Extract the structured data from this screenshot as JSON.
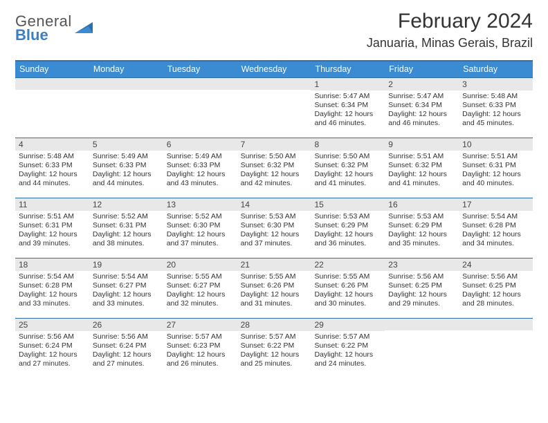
{
  "logo": {
    "word1": "General",
    "word2": "Blue"
  },
  "colors": {
    "brand_blue": "#3a8bd1",
    "dark_blue_rule": "#2f6fa8",
    "logo_blue": "#3a7fc4",
    "daynum_bg": "#e8e8e8",
    "text": "#333333"
  },
  "title": "February 2024",
  "location": "Januaria, Minas Gerais, Brazil",
  "daysOfWeek": [
    "Sunday",
    "Monday",
    "Tuesday",
    "Wednesday",
    "Thursday",
    "Friday",
    "Saturday"
  ],
  "weeks": [
    [
      {
        "n": "",
        "sr": "",
        "ss": "",
        "dl": ""
      },
      {
        "n": "",
        "sr": "",
        "ss": "",
        "dl": ""
      },
      {
        "n": "",
        "sr": "",
        "ss": "",
        "dl": ""
      },
      {
        "n": "",
        "sr": "",
        "ss": "",
        "dl": ""
      },
      {
        "n": "1",
        "sr": "Sunrise: 5:47 AM",
        "ss": "Sunset: 6:34 PM",
        "dl": "Daylight: 12 hours and 46 minutes."
      },
      {
        "n": "2",
        "sr": "Sunrise: 5:47 AM",
        "ss": "Sunset: 6:34 PM",
        "dl": "Daylight: 12 hours and 46 minutes."
      },
      {
        "n": "3",
        "sr": "Sunrise: 5:48 AM",
        "ss": "Sunset: 6:33 PM",
        "dl": "Daylight: 12 hours and 45 minutes."
      }
    ],
    [
      {
        "n": "4",
        "sr": "Sunrise: 5:48 AM",
        "ss": "Sunset: 6:33 PM",
        "dl": "Daylight: 12 hours and 44 minutes."
      },
      {
        "n": "5",
        "sr": "Sunrise: 5:49 AM",
        "ss": "Sunset: 6:33 PM",
        "dl": "Daylight: 12 hours and 44 minutes."
      },
      {
        "n": "6",
        "sr": "Sunrise: 5:49 AM",
        "ss": "Sunset: 6:33 PM",
        "dl": "Daylight: 12 hours and 43 minutes."
      },
      {
        "n": "7",
        "sr": "Sunrise: 5:50 AM",
        "ss": "Sunset: 6:32 PM",
        "dl": "Daylight: 12 hours and 42 minutes."
      },
      {
        "n": "8",
        "sr": "Sunrise: 5:50 AM",
        "ss": "Sunset: 6:32 PM",
        "dl": "Daylight: 12 hours and 41 minutes."
      },
      {
        "n": "9",
        "sr": "Sunrise: 5:51 AM",
        "ss": "Sunset: 6:32 PM",
        "dl": "Daylight: 12 hours and 41 minutes."
      },
      {
        "n": "10",
        "sr": "Sunrise: 5:51 AM",
        "ss": "Sunset: 6:31 PM",
        "dl": "Daylight: 12 hours and 40 minutes."
      }
    ],
    [
      {
        "n": "11",
        "sr": "Sunrise: 5:51 AM",
        "ss": "Sunset: 6:31 PM",
        "dl": "Daylight: 12 hours and 39 minutes."
      },
      {
        "n": "12",
        "sr": "Sunrise: 5:52 AM",
        "ss": "Sunset: 6:31 PM",
        "dl": "Daylight: 12 hours and 38 minutes."
      },
      {
        "n": "13",
        "sr": "Sunrise: 5:52 AM",
        "ss": "Sunset: 6:30 PM",
        "dl": "Daylight: 12 hours and 37 minutes."
      },
      {
        "n": "14",
        "sr": "Sunrise: 5:53 AM",
        "ss": "Sunset: 6:30 PM",
        "dl": "Daylight: 12 hours and 37 minutes."
      },
      {
        "n": "15",
        "sr": "Sunrise: 5:53 AM",
        "ss": "Sunset: 6:29 PM",
        "dl": "Daylight: 12 hours and 36 minutes."
      },
      {
        "n": "16",
        "sr": "Sunrise: 5:53 AM",
        "ss": "Sunset: 6:29 PM",
        "dl": "Daylight: 12 hours and 35 minutes."
      },
      {
        "n": "17",
        "sr": "Sunrise: 5:54 AM",
        "ss": "Sunset: 6:28 PM",
        "dl": "Daylight: 12 hours and 34 minutes."
      }
    ],
    [
      {
        "n": "18",
        "sr": "Sunrise: 5:54 AM",
        "ss": "Sunset: 6:28 PM",
        "dl": "Daylight: 12 hours and 33 minutes."
      },
      {
        "n": "19",
        "sr": "Sunrise: 5:54 AM",
        "ss": "Sunset: 6:27 PM",
        "dl": "Daylight: 12 hours and 33 minutes."
      },
      {
        "n": "20",
        "sr": "Sunrise: 5:55 AM",
        "ss": "Sunset: 6:27 PM",
        "dl": "Daylight: 12 hours and 32 minutes."
      },
      {
        "n": "21",
        "sr": "Sunrise: 5:55 AM",
        "ss": "Sunset: 6:26 PM",
        "dl": "Daylight: 12 hours and 31 minutes."
      },
      {
        "n": "22",
        "sr": "Sunrise: 5:55 AM",
        "ss": "Sunset: 6:26 PM",
        "dl": "Daylight: 12 hours and 30 minutes."
      },
      {
        "n": "23",
        "sr": "Sunrise: 5:56 AM",
        "ss": "Sunset: 6:25 PM",
        "dl": "Daylight: 12 hours and 29 minutes."
      },
      {
        "n": "24",
        "sr": "Sunrise: 5:56 AM",
        "ss": "Sunset: 6:25 PM",
        "dl": "Daylight: 12 hours and 28 minutes."
      }
    ],
    [
      {
        "n": "25",
        "sr": "Sunrise: 5:56 AM",
        "ss": "Sunset: 6:24 PM",
        "dl": "Daylight: 12 hours and 27 minutes."
      },
      {
        "n": "26",
        "sr": "Sunrise: 5:56 AM",
        "ss": "Sunset: 6:24 PM",
        "dl": "Daylight: 12 hours and 27 minutes."
      },
      {
        "n": "27",
        "sr": "Sunrise: 5:57 AM",
        "ss": "Sunset: 6:23 PM",
        "dl": "Daylight: 12 hours and 26 minutes."
      },
      {
        "n": "28",
        "sr": "Sunrise: 5:57 AM",
        "ss": "Sunset: 6:22 PM",
        "dl": "Daylight: 12 hours and 25 minutes."
      },
      {
        "n": "29",
        "sr": "Sunrise: 5:57 AM",
        "ss": "Sunset: 6:22 PM",
        "dl": "Daylight: 12 hours and 24 minutes."
      },
      {
        "n": "",
        "sr": "",
        "ss": "",
        "dl": ""
      },
      {
        "n": "",
        "sr": "",
        "ss": "",
        "dl": ""
      }
    ]
  ]
}
